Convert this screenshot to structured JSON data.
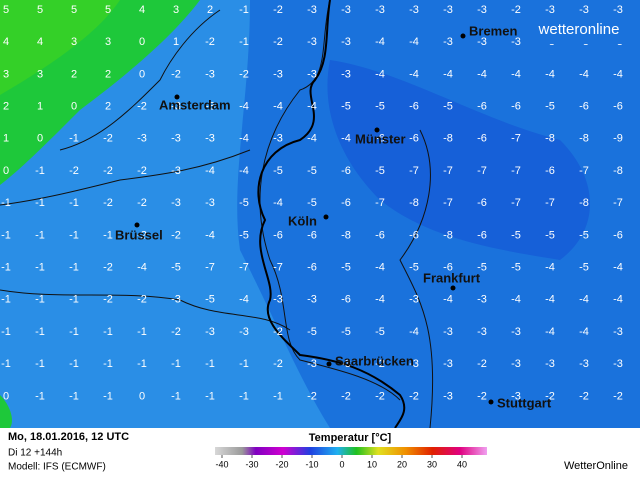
{
  "grid": [
    [
      5,
      5,
      5,
      5,
      4,
      3,
      2,
      -1,
      -2,
      -3,
      -3,
      -3,
      -3,
      -3,
      -3,
      -2,
      -3,
      -3,
      -3
    ],
    [
      4,
      4,
      3,
      3,
      0,
      1,
      -2,
      -1,
      -2,
      -3,
      -3,
      -4,
      -4,
      -3,
      -3,
      -3,
      -3,
      -3,
      -3
    ],
    [
      3,
      3,
      2,
      2,
      0,
      -2,
      -3,
      -2,
      -3,
      -3,
      -3,
      -4,
      -4,
      -4,
      -4,
      -4,
      -4,
      -4,
      -4
    ],
    [
      2,
      1,
      0,
      2,
      -2,
      -3,
      -3,
      -4,
      -4,
      -4,
      -5,
      -5,
      -6,
      -5,
      -6,
      -6,
      -5,
      -6,
      -6
    ],
    [
      1,
      0,
      -1,
      -2,
      -3,
      -3,
      -3,
      -4,
      -3,
      -4,
      -4,
      -6,
      -6,
      -8,
      -6,
      -7,
      -8,
      -8,
      -9
    ],
    [
      0,
      -1,
      -2,
      -2,
      -2,
      -3,
      -4,
      -4,
      -5,
      -5,
      -6,
      -5,
      -7,
      -7,
      -7,
      -7,
      -6,
      -7,
      -8
    ],
    [
      -1,
      -1,
      -1,
      -2,
      -2,
      -3,
      -3,
      -5,
      -4,
      -5,
      -6,
      -7,
      -8,
      -7,
      -6,
      -7,
      -7,
      -8,
      -7
    ],
    [
      -1,
      -1,
      -1,
      -1,
      -2,
      -2,
      -4,
      -5,
      -6,
      -6,
      -8,
      -6,
      -6,
      -8,
      -6,
      -5,
      -5,
      -5,
      -6
    ],
    [
      -1,
      -1,
      -1,
      -2,
      -4,
      -5,
      -7,
      -7,
      -7,
      -6,
      -5,
      -4,
      -5,
      -6,
      -5,
      -5,
      -4,
      -5,
      -4
    ],
    [
      -1,
      -1,
      -1,
      -2,
      -2,
      -3,
      -5,
      -4,
      -3,
      -3,
      -6,
      -4,
      -3,
      -4,
      -3,
      -4,
      -4,
      -4,
      -4
    ],
    [
      -1,
      -1,
      -1,
      -1,
      -1,
      -2,
      -3,
      -3,
      -2,
      -5,
      -5,
      -5,
      -4,
      -3,
      -3,
      -3,
      -4,
      -4,
      -3
    ],
    [
      -1,
      -1,
      -1,
      -1,
      -1,
      -1,
      -1,
      -1,
      -2,
      -3,
      -3,
      -2,
      -3,
      -3,
      -2,
      -3,
      -3,
      -3,
      -3
    ],
    [
      0,
      -1,
      -1,
      -1,
      0,
      -1,
      -1,
      -1,
      -1,
      -2,
      -2,
      -2,
      -2,
      -3,
      -2,
      -3,
      -2,
      -2,
      -2
    ]
  ],
  "cities": [
    "Bremen",
    "Amsterdam",
    "Münster",
    "Brüssel",
    "Köln",
    "Frankfurt",
    "Saarbrücken",
    "Stuttgart"
  ],
  "logo": "wetteronline",
  "footer": {
    "date": "Mo, 18.01.2016, 12 UTC",
    "run": "Di 12 +144h",
    "model": "Modell: IFS (ECMWF)",
    "legend_title": "Temperatur [°C]",
    "brand": "WetterOnline"
  },
  "colorbar_ticks": [
    -40,
    -30,
    -20,
    -10,
    0,
    10,
    20,
    30,
    40
  ]
}
